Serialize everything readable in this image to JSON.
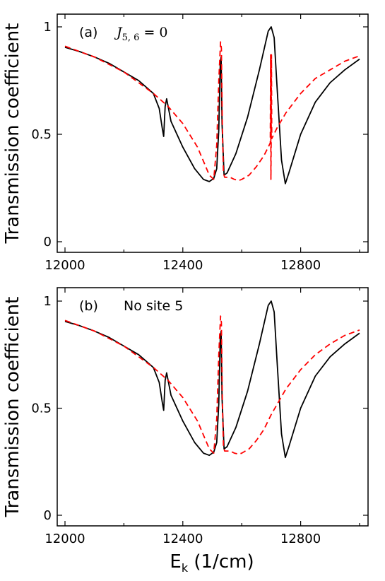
{
  "figure": {
    "ylabel": "Transmission coefficient",
    "xlabel_main": "E",
    "xlabel_sub": "k",
    "xlabel_unit": " (1/cm)"
  },
  "colors": {
    "solid": "#000000",
    "dashed": "#ff0000",
    "frame": "#000000"
  },
  "chart_data": [
    {
      "type": "line",
      "panel_label": "(a)",
      "annotation": {
        "base": "J",
        "sub": "5, 6",
        "rest": " = 0"
      },
      "xlim": [
        12000,
        13000
      ],
      "ylim": [
        0,
        1
      ],
      "xticks": [
        12000,
        12400,
        12800
      ],
      "yticks": [
        0,
        0.5,
        1
      ],
      "xtick_labels": [
        "12000",
        "12400",
        "12800"
      ],
      "ytick_labels": [
        "0",
        "0.5",
        "1"
      ],
      "series": [
        {
          "style": "solid",
          "color": "#000000",
          "x": [
            12000,
            12050,
            12100,
            12150,
            12200,
            12250,
            12300,
            12320,
            12330,
            12335,
            12340,
            12345,
            12360,
            12400,
            12440,
            12470,
            12490,
            12505,
            12515,
            12522,
            12527,
            12530,
            12533,
            12540,
            12550,
            12580,
            12620,
            12660,
            12690,
            12700,
            12710,
            12720,
            12735,
            12748,
            12760,
            12800,
            12850,
            12900,
            12950,
            13000
          ],
          "y": [
            0.905,
            0.885,
            0.86,
            0.83,
            0.79,
            0.75,
            0.69,
            0.62,
            0.53,
            0.49,
            0.63,
            0.665,
            0.56,
            0.44,
            0.34,
            0.29,
            0.28,
            0.295,
            0.34,
            0.52,
            0.83,
            0.86,
            0.55,
            0.31,
            0.32,
            0.41,
            0.58,
            0.8,
            0.98,
            1.0,
            0.95,
            0.72,
            0.38,
            0.27,
            0.32,
            0.5,
            0.65,
            0.74,
            0.8,
            0.85
          ]
        },
        {
          "style": "dashed",
          "color": "#ff0000",
          "x": [
            12000,
            12100,
            12200,
            12300,
            12350,
            12400,
            12450,
            12490,
            12505,
            12515,
            12522,
            12528,
            12531,
            12534,
            12538,
            12542,
            12550,
            12560,
            12575,
            12590,
            12600,
            12625,
            12650,
            12675,
            12690,
            12697,
            12698,
            12699,
            12700,
            12701,
            12702,
            12720,
            12750,
            12800,
            12850,
            12900,
            12950,
            13000
          ],
          "y": [
            0.91,
            0.86,
            0.79,
            0.69,
            0.63,
            0.55,
            0.44,
            0.31,
            0.29,
            0.45,
            0.75,
            0.93,
            0.9,
            0.55,
            0.32,
            0.3,
            0.3,
            0.3,
            0.29,
            0.285,
            0.29,
            0.31,
            0.35,
            0.4,
            0.44,
            0.46,
            0.87,
            0.29,
            0.47,
            0.87,
            0.48,
            0.53,
            0.6,
            0.69,
            0.76,
            0.8,
            0.84,
            0.865
          ]
        }
      ]
    },
    {
      "type": "line",
      "panel_label": "(b)",
      "annotation": {
        "text": "No site 5"
      },
      "xlim": [
        12000,
        13000
      ],
      "ylim": [
        0,
        1
      ],
      "xticks": [
        12000,
        12400,
        12800
      ],
      "yticks": [
        0,
        0.5,
        1
      ],
      "xtick_labels": [
        "12000",
        "12400",
        "12800"
      ],
      "ytick_labels": [
        "0",
        "0.5",
        "1"
      ],
      "series": [
        {
          "style": "solid",
          "color": "#000000",
          "x": [
            12000,
            12050,
            12100,
            12150,
            12200,
            12250,
            12300,
            12320,
            12330,
            12335,
            12340,
            12345,
            12360,
            12400,
            12440,
            12470,
            12490,
            12505,
            12515,
            12522,
            12527,
            12530,
            12533,
            12540,
            12550,
            12580,
            12620,
            12660,
            12690,
            12700,
            12710,
            12720,
            12735,
            12748,
            12760,
            12800,
            12850,
            12900,
            12950,
            13000
          ],
          "y": [
            0.905,
            0.885,
            0.86,
            0.83,
            0.79,
            0.75,
            0.69,
            0.62,
            0.53,
            0.49,
            0.63,
            0.665,
            0.56,
            0.44,
            0.34,
            0.29,
            0.28,
            0.295,
            0.34,
            0.52,
            0.83,
            0.86,
            0.55,
            0.31,
            0.32,
            0.41,
            0.58,
            0.8,
            0.98,
            1.0,
            0.95,
            0.72,
            0.38,
            0.27,
            0.32,
            0.5,
            0.65,
            0.74,
            0.8,
            0.85
          ]
        },
        {
          "style": "dashed",
          "color": "#ff0000",
          "x": [
            12000,
            12100,
            12200,
            12300,
            12350,
            12400,
            12450,
            12490,
            12505,
            12515,
            12522,
            12528,
            12531,
            12534,
            12538,
            12542,
            12550,
            12560,
            12575,
            12590,
            12600,
            12625,
            12650,
            12675,
            12700,
            12750,
            12800,
            12850,
            12900,
            12950,
            13000
          ],
          "y": [
            0.91,
            0.86,
            0.79,
            0.69,
            0.63,
            0.55,
            0.44,
            0.31,
            0.29,
            0.45,
            0.75,
            0.93,
            0.9,
            0.55,
            0.32,
            0.3,
            0.3,
            0.3,
            0.29,
            0.285,
            0.29,
            0.31,
            0.35,
            0.4,
            0.47,
            0.59,
            0.68,
            0.75,
            0.8,
            0.84,
            0.865
          ]
        }
      ]
    }
  ]
}
